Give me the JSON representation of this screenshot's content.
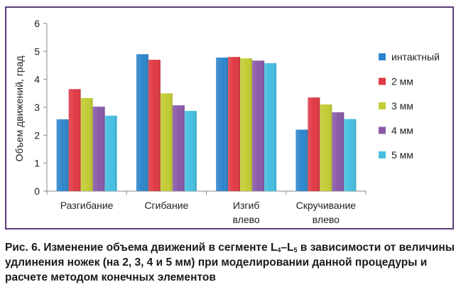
{
  "chart_data": {
    "type": "bar",
    "ylabel": "Объем движений, град",
    "ylim": [
      0,
      6
    ],
    "yticks": [
      "0",
      "1",
      "2",
      "3",
      "4",
      "5",
      "6"
    ],
    "grid": false,
    "legend_position": "right",
    "categories": [
      [
        "Разгибание"
      ],
      [
        "Сгибание"
      ],
      [
        "Изгиб",
        "влево"
      ],
      [
        "Скручивание",
        "влево"
      ]
    ],
    "series": [
      {
        "name": "интактный",
        "color": "#2f86cc",
        "values": [
          2.57,
          4.9,
          4.78,
          2.2
        ]
      },
      {
        "name": "2 мм",
        "color": "#e03a45",
        "values": [
          3.65,
          4.7,
          4.8,
          3.35
        ]
      },
      {
        "name": "3 мм",
        "color": "#c2cc34",
        "values": [
          3.33,
          3.5,
          4.75,
          3.1
        ]
      },
      {
        "name": "4 мм",
        "color": "#8a5aa8",
        "values": [
          3.02,
          3.07,
          4.67,
          2.82
        ]
      },
      {
        "name": "5 мм",
        "color": "#45bfe0",
        "values": [
          2.7,
          2.87,
          4.58,
          2.58
        ]
      }
    ]
  },
  "caption": {
    "part1": "Рис. 6. Изменение объема движений в сегменте L",
    "sub1": "4",
    "dash": "–L",
    "sub2": "5",
    "part2": " в зависимости от величины удлинения ножек (на 2, 3, 4 и 5 мм) при моделировании данной процедуры и расчете методом конечных элементов"
  }
}
